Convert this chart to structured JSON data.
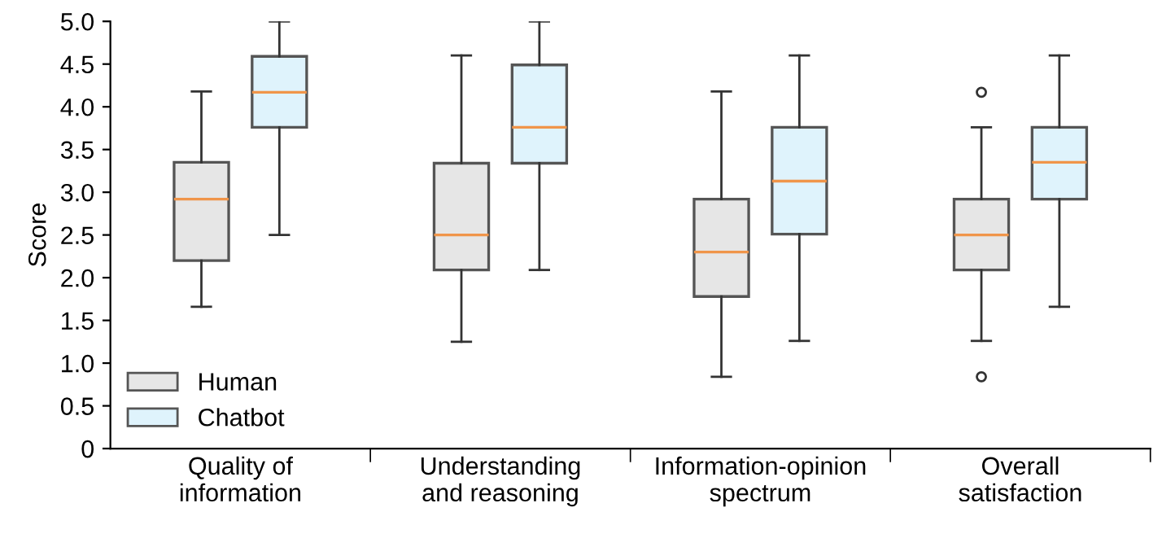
{
  "chart_data": {
    "type": "box",
    "ylabel": "Score",
    "categories": [
      "Quality of\ninformation",
      "Understanding\nand reasoning",
      "Information-opinion\nspectrum",
      "Overall\nsatisfaction"
    ],
    "series": [
      {
        "name": "Human",
        "color": "#e6e6e6",
        "boxes": [
          {
            "low": 1.66,
            "q1": 2.2,
            "median": 2.92,
            "q3": 3.35,
            "high": 4.18
          },
          {
            "low": 1.25,
            "q1": 2.09,
            "median": 2.5,
            "q3": 3.34,
            "high": 4.6
          },
          {
            "low": 0.84,
            "q1": 1.78,
            "median": 2.3,
            "q3": 2.92,
            "high": 4.18
          },
          {
            "low": 1.26,
            "q1": 2.09,
            "median": 2.5,
            "q3": 2.92,
            "high": 3.76,
            "outliers": [
              4.17,
              0.84
            ]
          }
        ]
      },
      {
        "name": "Chatbot",
        "color": "#dff3fc",
        "boxes": [
          {
            "low": 2.5,
            "q1": 3.76,
            "median": 4.17,
            "q3": 4.59,
            "high": 5.0
          },
          {
            "low": 2.09,
            "q1": 3.34,
            "median": 3.76,
            "q3": 4.49,
            "high": 5.0
          },
          {
            "low": 1.26,
            "q1": 2.51,
            "median": 3.13,
            "q3": 3.76,
            "high": 4.6
          },
          {
            "low": 1.66,
            "q1": 2.92,
            "median": 3.35,
            "q3": 3.76,
            "high": 4.6
          }
        ]
      }
    ],
    "ylim": [
      0,
      5
    ],
    "yticks": [
      {
        "value": 0,
        "label": "0"
      },
      {
        "value": 0.5,
        "label": "0.5"
      },
      {
        "value": 1,
        "label": "1.0"
      },
      {
        "value": 1.5,
        "label": "1.5"
      },
      {
        "value": 2,
        "label": "2.0"
      },
      {
        "value": 2.5,
        "label": "2.5"
      },
      {
        "value": 3,
        "label": "3.0"
      },
      {
        "value": 3.5,
        "label": "3.5"
      },
      {
        "value": 4,
        "label": "4.0"
      },
      {
        "value": 4.5,
        "label": "4.5"
      },
      {
        "value": 5,
        "label": "5.0"
      }
    ],
    "legend": "bottom left",
    "grid": false
  }
}
